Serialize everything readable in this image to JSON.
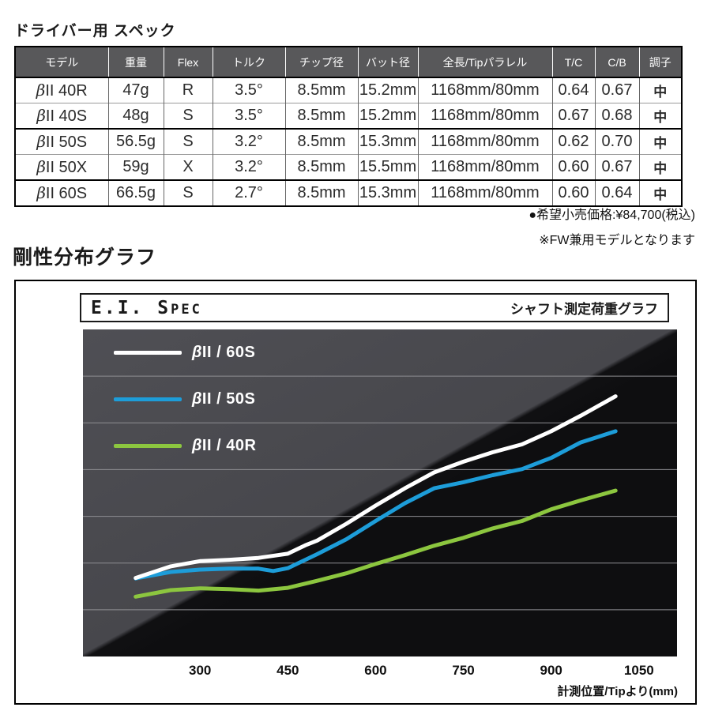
{
  "spec": {
    "heading": "ドライバー用 スペック",
    "table": {
      "columns": [
        "モデル",
        "重量",
        "Flex",
        "トルク",
        "チップ径",
        "バット径",
        "全長/Tipパラレル",
        "T/C",
        "C/B",
        "調子"
      ],
      "rows": [
        [
          "βII 40R",
          "47g",
          "R",
          "3.5°",
          "8.5mm",
          "15.2mm",
          "1168mm/80mm",
          "0.64",
          "0.67",
          "中"
        ],
        [
          "βII 40S",
          "48g",
          "S",
          "3.5°",
          "8.5mm",
          "15.2mm",
          "1168mm/80mm",
          "0.67",
          "0.68",
          "中"
        ],
        [
          "βII 50S",
          "56.5g",
          "S",
          "3.2°",
          "8.5mm",
          "15.3mm",
          "1168mm/80mm",
          "0.62",
          "0.70",
          "中"
        ],
        [
          "βII 50X",
          "59g",
          "X",
          "3.2°",
          "8.5mm",
          "15.5mm",
          "1168mm/80mm",
          "0.60",
          "0.67",
          "中"
        ],
        [
          "βII 60S",
          "66.5g",
          "S",
          "2.7°",
          "8.5mm",
          "15.3mm",
          "1168mm/80mm",
          "0.60",
          "0.64",
          "中"
        ]
      ]
    },
    "notes": {
      "price": "●希望小売価格:¥84,700(税込)",
      "fw": "※FW兼用モデルとなります"
    }
  },
  "chart": {
    "heading": "剛性分布グラフ",
    "title_big": "E.I. S",
    "title_small": "PEC",
    "subtitle": "シャフト測定荷重グラフ"
  },
  "colors": {
    "table_header_bg": "#58585a",
    "panel_bg": "#0e0e10",
    "gridline": "#8e8e92",
    "series_white": "#ffffff",
    "series_blue": "#1d9dd9",
    "series_green": "#8cc63f"
  },
  "chart_data": {
    "type": "line",
    "title": "E.I. SPEC",
    "subtitle": "シャフト測定荷重グラフ",
    "xlabel": "計測位置/Tipより(mm)",
    "ylabel": "",
    "x_ticks": [
      300,
      450,
      600,
      750,
      900,
      1050
    ],
    "xlim": [
      100,
      1115
    ],
    "ylim": [
      0,
      7
    ],
    "grid": "horizontal-only, 6 gridlines",
    "legend_position": "top-left",
    "y_units": "relative stiffness (gridline spacing = 1 unit, no numeric labels shown)",
    "series": [
      {
        "name": "βII / 60S",
        "color": "#ffffff",
        "x": [
          190,
          250,
          300,
          350,
          400,
          450,
          480,
          500,
          550,
          600,
          650,
          700,
          750,
          800,
          850,
          900,
          950,
          1010
        ],
        "y": [
          1.68,
          1.93,
          2.04,
          2.07,
          2.11,
          2.2,
          2.38,
          2.48,
          2.84,
          3.23,
          3.6,
          3.94,
          4.17,
          4.37,
          4.54,
          4.82,
          5.15,
          5.57
        ]
      },
      {
        "name": "βII / 50S",
        "color": "#1d9dd9",
        "x": [
          190,
          250,
          300,
          350,
          400,
          425,
          450,
          500,
          550,
          600,
          650,
          700,
          750,
          800,
          850,
          900,
          950,
          1010
        ],
        "y": [
          1.67,
          1.81,
          1.86,
          1.88,
          1.88,
          1.83,
          1.89,
          2.19,
          2.51,
          2.9,
          3.28,
          3.6,
          3.73,
          3.88,
          4.01,
          4.25,
          4.58,
          4.82
        ]
      },
      {
        "name": "βII / 40R",
        "color": "#8cc63f",
        "x": [
          190,
          250,
          300,
          350,
          400,
          450,
          500,
          550,
          600,
          650,
          700,
          750,
          800,
          850,
          900,
          950,
          1010
        ],
        "y": [
          1.28,
          1.42,
          1.46,
          1.44,
          1.41,
          1.47,
          1.62,
          1.78,
          1.98,
          2.17,
          2.37,
          2.54,
          2.74,
          2.9,
          3.15,
          3.34,
          3.55
        ]
      }
    ]
  }
}
